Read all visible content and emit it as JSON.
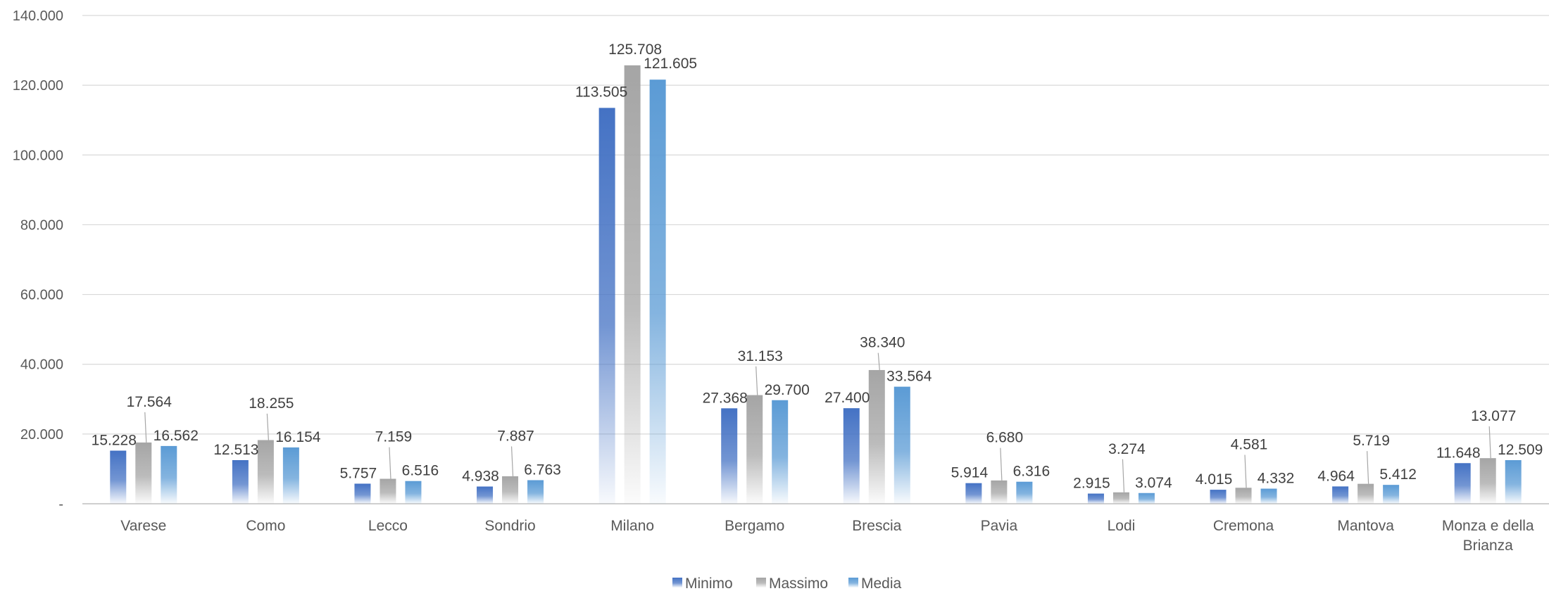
{
  "chart_data": {
    "type": "bar",
    "title": "",
    "xlabel": "",
    "ylabel": "",
    "ylim": [
      0,
      140000
    ],
    "y_ticks": [
      0,
      20000,
      40000,
      60000,
      80000,
      100000,
      120000,
      140000
    ],
    "y_tick_labels": [
      "-",
      "20.000",
      "40.000",
      "60.000",
      "80.000",
      "100.000",
      "120.000",
      "140.000"
    ],
    "grid": true,
    "legend_position": "bottom",
    "categories": [
      "Varese",
      "Como",
      "Lecco",
      "Sondrio",
      "Milano",
      "Bergamo",
      "Brescia",
      "Pavia",
      "Lodi",
      "Cremona",
      "Mantova",
      "Monza e della Brianza"
    ],
    "series": [
      {
        "name": "Minimo",
        "color": "#4472C4",
        "values": [
          15228,
          12513,
          5757,
          4938,
          113505,
          27368,
          27400,
          5914,
          2915,
          4015,
          4964,
          11648
        ],
        "labels": [
          "15.228",
          "12.513",
          "5.757",
          "4.938",
          "113.505",
          "27.368",
          "27.400",
          "5.914",
          "2.915",
          "4.015",
          "4.964",
          "11.648"
        ]
      },
      {
        "name": "Massimo",
        "color": "#A5A5A5",
        "values": [
          17564,
          18255,
          7159,
          7887,
          125708,
          31153,
          38340,
          6680,
          3274,
          4581,
          5719,
          13077
        ],
        "labels": [
          "17.564",
          "18.255",
          "7.159",
          "7.887",
          "125.708",
          "31.153",
          "38.340",
          "6.680",
          "3.274",
          "4.581",
          "5.719",
          "13.077"
        ]
      },
      {
        "name": "Media",
        "color": "#5B9BD5",
        "values": [
          16562,
          16154,
          6516,
          6763,
          121605,
          29700,
          33564,
          6316,
          3074,
          4332,
          5412,
          12509
        ],
        "labels": [
          "16.562",
          "16.154",
          "6.516",
          "6.763",
          "121.605",
          "29.700",
          "33.564",
          "6.316",
          "3.074",
          "4.332",
          "5.412",
          "12.509"
        ]
      }
    ]
  }
}
